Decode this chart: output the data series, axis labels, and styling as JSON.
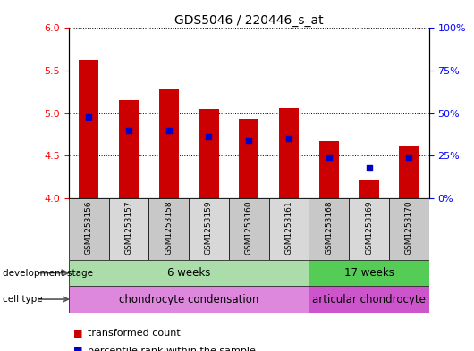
{
  "title": "GDS5046 / 220446_s_at",
  "samples": [
    "GSM1253156",
    "GSM1253157",
    "GSM1253158",
    "GSM1253159",
    "GSM1253160",
    "GSM1253161",
    "GSM1253168",
    "GSM1253169",
    "GSM1253170"
  ],
  "transformed_count": [
    5.63,
    5.15,
    5.28,
    5.05,
    4.93,
    5.06,
    4.67,
    4.22,
    4.62
  ],
  "percentile_rank": [
    48,
    40,
    40,
    36,
    34,
    35,
    24,
    18,
    24
  ],
  "ylim_left": [
    4.0,
    6.0
  ],
  "ylim_right": [
    0,
    100
  ],
  "yticks_left": [
    4.0,
    4.5,
    5.0,
    5.5,
    6.0
  ],
  "yticks_right": [
    0,
    25,
    50,
    75,
    100
  ],
  "ytick_labels_right": [
    "0%",
    "25%",
    "50%",
    "75%",
    "100%"
  ],
  "bar_color": "#cc0000",
  "dot_color": "#0000cc",
  "bar_bottom": 4.0,
  "development_stage_labels": [
    "6 weeks",
    "17 weeks"
  ],
  "development_stage_splits": [
    6,
    9
  ],
  "cell_type_labels": [
    "chondrocyte condensation",
    "articular chondrocyte"
  ],
  "cell_type_splits": [
    6,
    9
  ],
  "dev_stage_color_1": "#aaddaa",
  "dev_stage_color_2": "#55cc55",
  "cell_type_color_1": "#dd88dd",
  "cell_type_color_2": "#cc55cc",
  "legend_items": [
    {
      "label": "transformed count",
      "color": "#cc0000"
    },
    {
      "label": "percentile rank within the sample",
      "color": "#0000cc"
    }
  ]
}
